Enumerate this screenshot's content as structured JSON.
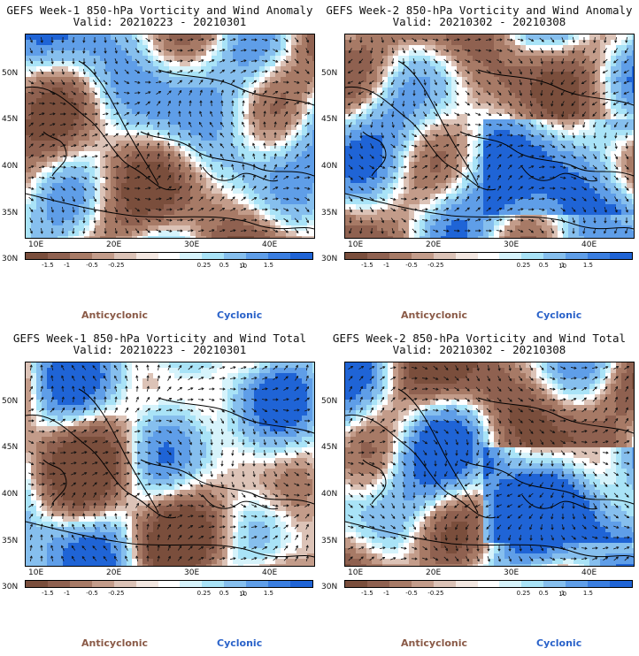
{
  "panels": [
    {
      "title": "GEFS Week-1 850-hPa Vorticity and Wind Anomaly",
      "valid": "Valid: 20210223 - 20210301"
    },
    {
      "title": "GEFS Week-2 850-hPa Vorticity and Wind Anomaly",
      "valid": "Valid: 20210302 - 20210308"
    },
    {
      "title": "GEFS Week-1 850-hPa Vorticity and Wind Total",
      "valid": "Valid: 20210223 - 20210301"
    },
    {
      "title": "GEFS Week-2 850-hPa Vorticity and Wind Total",
      "valid": "Valid: 20210302 - 20210308"
    }
  ],
  "lat_labels": [
    "50N",
    "45N",
    "40N",
    "35N",
    "30N"
  ],
  "lon_labels": [
    "10E",
    "20E",
    "30E",
    "40E"
  ],
  "colorbar": {
    "labels": [
      "-1.5",
      "-1",
      "-0.5",
      "-0.25",
      "0.25",
      "0.5",
      "1",
      "1.5"
    ],
    "reference_vector": "10",
    "colors": [
      "#7a4e3c",
      "#8f6150",
      "#a77a66",
      "#c39c8a",
      "#dcc3b7",
      "#f3e7e1",
      "#ffffff",
      "#d6f3fb",
      "#a9e3f7",
      "#86bfee",
      "#5f9ee8",
      "#3a7ee0",
      "#1f64d6"
    ]
  },
  "legend": {
    "anticyclonic": "Anticyclonic",
    "cyclonic": "Cyclonic",
    "anticyclonic_color": "#8a5a47",
    "cyclonic_color": "#2a62c9"
  }
}
